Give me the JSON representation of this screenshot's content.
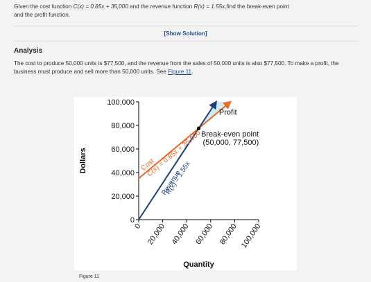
{
  "problem": {
    "text_before": "Given the cost function ",
    "cost_expr": "C(x) = 0.85x + 35,000",
    "text_mid": " and the revenue function ",
    "revenue_expr": "R(x) = 1.55x",
    "text_after": ",find the break-even point",
    "text_line2": "and the profit function."
  },
  "show_solution_label": "[Show Solution]",
  "analysis": {
    "title": "Analysis",
    "body_before_link": "The cost to produce 50,000 units is $77,500, and the revenue from the sales of 50,000 units is also $77,500. To make a profit, the business must produce and sell more than 50,000 units. See ",
    "link_text": "Figure 11",
    "body_after_link": "."
  },
  "figure_caption": "Figure 11",
  "colors": {
    "cost_line": "#e8692a",
    "revenue_line": "#1f3f7a",
    "profit_region": "#cfeaf3",
    "link": "#1f4e8c"
  },
  "chart_data": {
    "type": "line",
    "xlabel": "Quantity",
    "ylabel": "Dollars",
    "xlim": [
      0,
      100000
    ],
    "ylim": [
      0,
      100000
    ],
    "x_ticks": [
      "0",
      "20,000",
      "40,000",
      "60,000",
      "80,000",
      "100,000"
    ],
    "y_ticks": [
      "0",
      "20,000",
      "40,000",
      "60,000",
      "80,000",
      "100,000"
    ],
    "series": [
      {
        "name": "Cost",
        "equation": "C(x) = 0.85x + 35,000",
        "x": [
          0,
          50000,
          76470
        ],
        "y": [
          35000,
          77500,
          100000
        ]
      },
      {
        "name": "Revenue",
        "equation": "R(x) = 1.55x",
        "x": [
          0,
          50000,
          64516
        ],
        "y": [
          0,
          77500,
          100000
        ]
      }
    ],
    "annotations": {
      "profit": "Profit",
      "break_even_label": "Break-even point",
      "break_even_coords": "(50,000, 77,500)",
      "break_even": {
        "x": 50000,
        "y": 77500
      }
    }
  }
}
